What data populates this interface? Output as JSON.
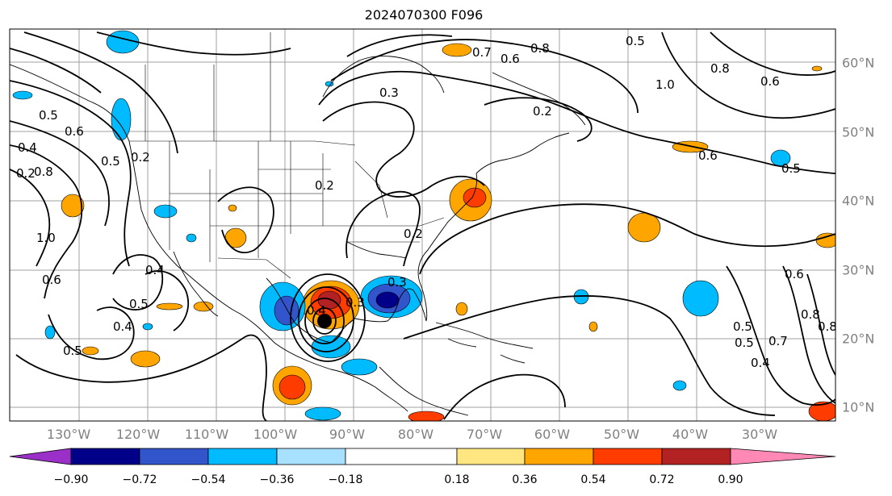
{
  "title": "2024070300 F096",
  "lon_labels": [
    "130°W",
    "120°W",
    "110°W",
    "100°W",
    "90°W",
    "80°W",
    "70°W",
    "60°W",
    "50°W",
    "40°W",
    "30°W"
  ],
  "lat_labels": [
    "60°N",
    "50°N",
    "40°N",
    "30°N",
    "20°N",
    "10°N"
  ],
  "colorbar": {
    "ticks": [
      "−0.90",
      "−0.72",
      "−0.54",
      "−0.36",
      "−0.18",
      "0.18",
      "0.36",
      "0.54",
      "0.72",
      "0.90"
    ],
    "colors": [
      "#9b30c8",
      "#000088",
      "#3355cc",
      "#00bbff",
      "#a8e0ff",
      "#ffffff",
      "#ffe680",
      "#ffa500",
      "#ff3c00",
      "#b22222",
      "#ff88b4"
    ]
  },
  "contour_labels": [
    "0.7",
    "0.6",
    "0.8",
    "0.5",
    "1.0",
    "0.8",
    "0.6",
    "0.3",
    "0.2",
    "0.5",
    "0.6",
    "0.4",
    "0.2",
    "0.8",
    "0.5",
    "0.2",
    "0.6",
    "0.5",
    "1.0",
    "0.6",
    "0.4",
    "0.5",
    "0.4",
    "0.5",
    "0.2",
    "0.2",
    "0.3",
    "0.3",
    "0.4",
    "0.5",
    "0.6",
    "0.8",
    "0.7",
    "0.4",
    "0.5",
    "0.8"
  ]
}
